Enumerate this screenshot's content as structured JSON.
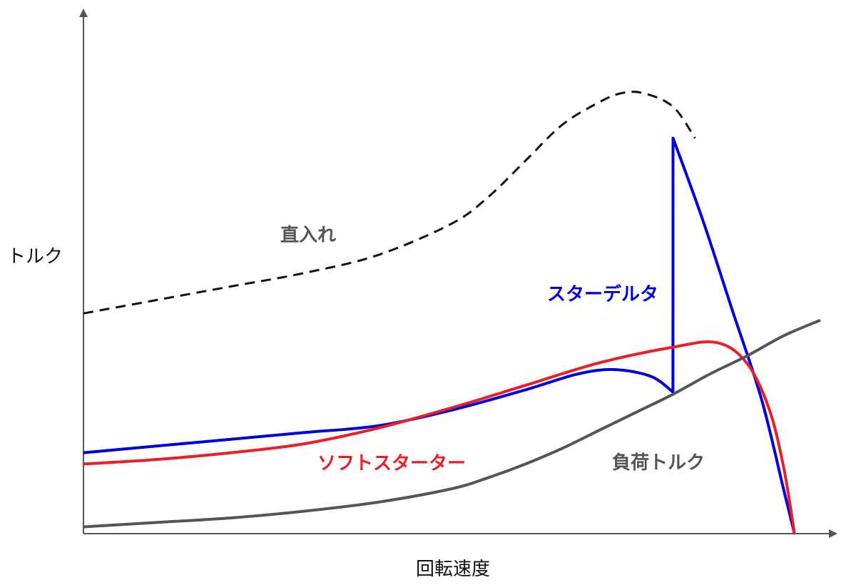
{
  "chart_data": {
    "type": "line",
    "title": "",
    "xlabel": "回転速度",
    "ylabel": "トルク",
    "xlim": [
      0,
      100
    ],
    "ylim": [
      0,
      100
    ],
    "grid": false,
    "ticks": false,
    "series": [
      {
        "name": "直入れ",
        "color": "#111111",
        "style": "dashed",
        "points": [
          [
            0,
            49
          ],
          [
            10,
            52
          ],
          [
            20,
            55
          ],
          [
            30,
            58
          ],
          [
            40,
            62
          ],
          [
            50,
            69
          ],
          [
            55,
            75
          ],
          [
            60,
            83
          ],
          [
            65,
            91
          ],
          [
            70,
            96
          ],
          [
            73,
            98
          ],
          [
            76,
            98
          ],
          [
            80,
            95
          ],
          [
            83,
            88
          ]
        ]
      },
      {
        "name": "スターデルタ",
        "color": "#0000e0",
        "style": "solid",
        "points": [
          [
            0,
            18
          ],
          [
            10,
            19.5
          ],
          [
            20,
            21
          ],
          [
            30,
            22.5
          ],
          [
            40,
            24
          ],
          [
            50,
            27.5
          ],
          [
            60,
            32
          ],
          [
            67,
            35.5
          ],
          [
            72,
            36.5
          ],
          [
            77,
            35
          ],
          [
            80,
            31.5
          ],
          [
            80.01,
            88
          ],
          [
            84,
            70
          ],
          [
            88,
            50
          ],
          [
            92,
            30
          ],
          [
            95,
            10
          ],
          [
            96.5,
            0
          ]
        ]
      },
      {
        "name": "ソフトスターター",
        "color": "#ee1c25",
        "style": "solid",
        "points": [
          [
            0,
            15.5
          ],
          [
            10,
            16.5
          ],
          [
            20,
            18
          ],
          [
            30,
            20
          ],
          [
            40,
            23.5
          ],
          [
            50,
            28
          ],
          [
            60,
            33
          ],
          [
            70,
            38
          ],
          [
            80,
            41.5
          ],
          [
            86,
            42.5
          ],
          [
            90,
            38
          ],
          [
            93,
            28
          ],
          [
            95,
            15
          ],
          [
            96.5,
            0
          ]
        ]
      },
      {
        "name": "負荷トルク",
        "color": "#555555",
        "style": "solid",
        "points": [
          [
            0,
            1.5
          ],
          [
            10,
            2.5
          ],
          [
            20,
            3.5
          ],
          [
            30,
            5
          ],
          [
            40,
            7
          ],
          [
            50,
            10
          ],
          [
            55,
            12.5
          ],
          [
            60,
            15.5
          ],
          [
            65,
            19
          ],
          [
            70,
            23
          ],
          [
            75,
            27
          ],
          [
            80,
            31
          ],
          [
            85,
            35.5
          ],
          [
            90,
            39.5
          ],
          [
            95,
            44
          ],
          [
            100,
            47.5
          ]
        ]
      }
    ]
  }
}
